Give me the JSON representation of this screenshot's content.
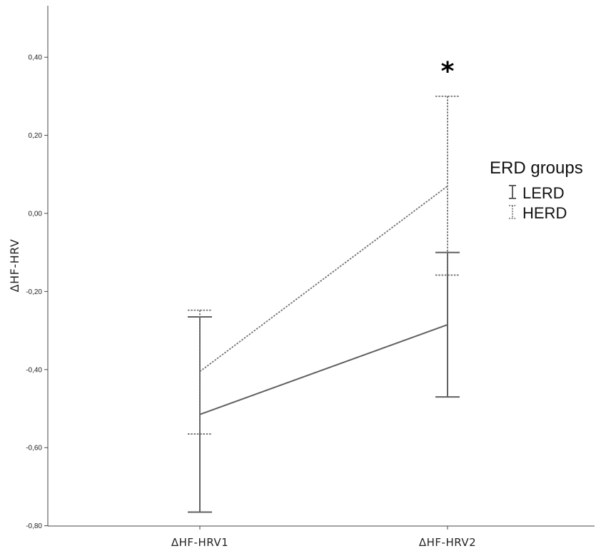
{
  "chart_data": {
    "type": "line",
    "ylabel": "ΔHF-HRV",
    "xlabel": "",
    "categories": [
      "ΔHF-HRV1",
      "ΔHF-HRV2"
    ],
    "ylim": [
      -0.8,
      0.52
    ],
    "yticks": [
      -0.8,
      -0.6,
      -0.4,
      -0.2,
      0.0,
      0.2,
      0.4
    ],
    "ytick_labels": [
      "-0,80",
      "-0,60",
      "-0,40",
      "-0,20",
      "0,00",
      "0,20",
      "0,40"
    ],
    "grid": false,
    "legend": {
      "title": "ERD groups",
      "position": "right",
      "entries": [
        "LERD",
        "HERD"
      ]
    },
    "series": [
      {
        "name": "LERD",
        "line_style": "solid",
        "color": "#606060",
        "values": [
          -0.515,
          -0.285
        ],
        "ci_low": [
          -0.765,
          -0.47
        ],
        "ci_high": [
          -0.265,
          -0.1
        ]
      },
      {
        "name": "HERD",
        "line_style": "dotted",
        "color": "#707070",
        "values": [
          -0.405,
          0.07
        ],
        "ci_low": [
          -0.565,
          -0.158
        ],
        "ci_high": [
          -0.248,
          0.3
        ]
      }
    ],
    "annotations": [
      {
        "text": "*",
        "category": "ΔHF-HRV2"
      }
    ]
  }
}
